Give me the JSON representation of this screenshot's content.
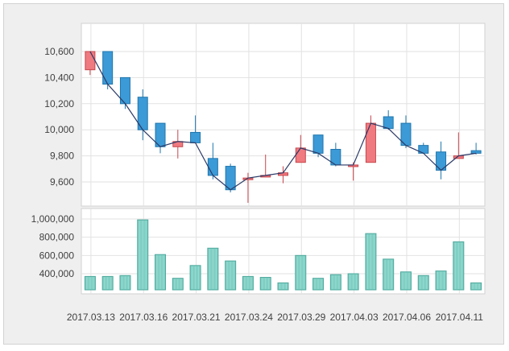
{
  "chart_data": [
    {
      "type": "candlestick",
      "ylim": [
        9400,
        10800
      ],
      "y_ticks": [
        "10,600",
        "10,400",
        "10,200",
        "10,000",
        "9,800",
        "9,600"
      ],
      "y_tick_values": [
        10600,
        10400,
        10200,
        10000,
        9800,
        9600
      ],
      "grid": true,
      "colors": {
        "up": "#ef7a80",
        "down": "#3c9ad6",
        "up_border": "#c8464c",
        "down_border": "#1f76ad",
        "line": "#2b3a67"
      },
      "candles": [
        {
          "open": 10460,
          "close": 10600,
          "high": 10600,
          "low": 10420
        },
        {
          "open": 10600,
          "close": 10350,
          "high": 10600,
          "low": 10310
        },
        {
          "open": 10400,
          "close": 10200,
          "high": 10400,
          "low": 10160
        },
        {
          "open": 10250,
          "close": 10000,
          "high": 10310,
          "low": 9920
        },
        {
          "open": 10050,
          "close": 9870,
          "high": 10050,
          "low": 9820
        },
        {
          "open": 9870,
          "close": 9910,
          "high": 10000,
          "low": 9780
        },
        {
          "open": 9980,
          "close": 9900,
          "high": 10110,
          "low": 9900
        },
        {
          "open": 9780,
          "close": 9650,
          "high": 9900,
          "low": 9620
        },
        {
          "open": 9720,
          "close": 9540,
          "high": 9740,
          "low": 9520
        },
        {
          "open": 9630,
          "close": 9630,
          "high": 9670,
          "low": 9440
        },
        {
          "open": 9640,
          "close": 9650,
          "high": 9810,
          "low": 9640
        },
        {
          "open": 9650,
          "close": 9670,
          "high": 9720,
          "low": 9590
        },
        {
          "open": 9750,
          "close": 9860,
          "high": 9960,
          "low": 9750
        },
        {
          "open": 9960,
          "close": 9820,
          "high": 9960,
          "low": 9790
        },
        {
          "open": 9850,
          "close": 9730,
          "high": 9900,
          "low": 9720
        },
        {
          "open": 9730,
          "close": 9730,
          "high": 9750,
          "low": 9610
        },
        {
          "open": 9750,
          "close": 10050,
          "high": 10110,
          "low": 9750
        },
        {
          "open": 10100,
          "close": 10010,
          "high": 10150,
          "low": 10000
        },
        {
          "open": 10050,
          "close": 9880,
          "high": 10110,
          "low": 9860
        },
        {
          "open": 9880,
          "close": 9820,
          "high": 9900,
          "low": 9820
        },
        {
          "open": 9830,
          "close": 9690,
          "high": 9910,
          "low": 9620
        },
        {
          "open": 9780,
          "close": 9800,
          "high": 9980,
          "low": 9780
        },
        {
          "open": 9840,
          "close": 9820,
          "high": 9900,
          "low": 9810
        }
      ]
    },
    {
      "type": "bar",
      "ylim": [
        250000,
        1100000
      ],
      "y_ticks": [
        "1,000,000",
        "800,000",
        "600,000",
        "400,000"
      ],
      "y_tick_values": [
        1000000,
        800000,
        600000,
        400000
      ],
      "grid": true,
      "colors": {
        "bar": "#7fcfc4",
        "bar_border": "#4ea89c"
      },
      "values": [
        370000,
        370000,
        380000,
        990000,
        610000,
        350000,
        490000,
        680000,
        540000,
        370000,
        360000,
        300000,
        600000,
        350000,
        390000,
        400000,
        840000,
        560000,
        420000,
        380000,
        430000,
        750000,
        300000
      ]
    }
  ],
  "x_labels": [
    "2017.03.13",
    "2017.03.16",
    "2017.03.21",
    "2017.03.24",
    "2017.03.29",
    "2017.04.03",
    "2017.04.06",
    "2017.04.11"
  ]
}
